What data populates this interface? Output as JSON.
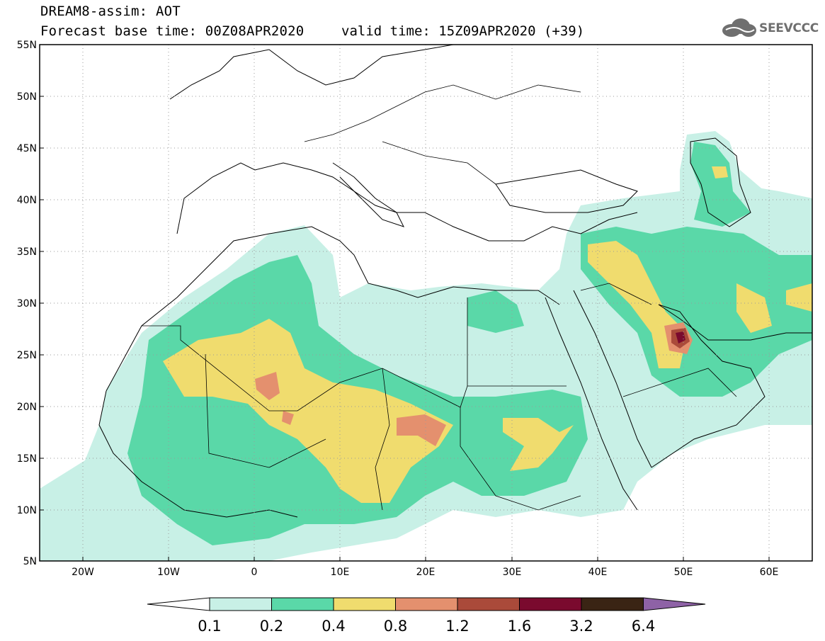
{
  "header": {
    "title_line1": "DREAM8-assim: AOT",
    "title_line2": "Forecast base time: 00Z08APR2020",
    "valid_time": "valid time: 15Z09APR2020 (+39)"
  },
  "logo": {
    "text": "SEEVCCC",
    "icon": "cloud-icon"
  },
  "axes": {
    "lat_labels": [
      "55N",
      "50N",
      "45N",
      "40N",
      "35N",
      "30N",
      "25N",
      "20N",
      "15N",
      "10N",
      "5N"
    ],
    "lon_labels": [
      "20W",
      "10W",
      "0",
      "10E",
      "20E",
      "30E",
      "40E",
      "50E",
      "60E"
    ],
    "lon_range": [
      -25,
      65
    ],
    "lat_range": [
      5,
      55
    ]
  },
  "colorbar": {
    "levels": [
      "0.1",
      "0.2",
      "0.4",
      "0.8",
      "1.2",
      "1.6",
      "3.2",
      "6.4"
    ],
    "colors": [
      "#ffffff",
      "#c8f0e6",
      "#5ad8a8",
      "#f0dc6e",
      "#e4906e",
      "#aa4a3a",
      "#7a0a2e",
      "#3a2414",
      "#8e62a6"
    ]
  },
  "legend_colors": {
    "c01": "#c8f0e6",
    "c02": "#5ad8a8",
    "c04": "#f0dc6e",
    "c08": "#e4906e",
    "c12": "#aa4a3a",
    "c16": "#7a0a2e"
  }
}
